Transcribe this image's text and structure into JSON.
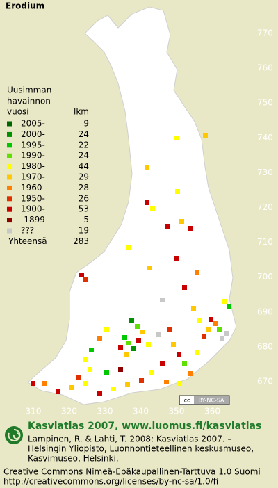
{
  "title": "Erodium",
  "legend": {
    "heading": [
      "Uusimman",
      "havainnon",
      "vuosi"
    ],
    "count_heading": "lkm",
    "entries": [
      {
        "label": "2005-",
        "count": 9,
        "color": "#006400"
      },
      {
        "label": "2000-",
        "count": 24,
        "color": "#009000"
      },
      {
        "label": "1995-",
        "count": 22,
        "color": "#00c800"
      },
      {
        "label": "1990-",
        "count": 24,
        "color": "#60e000"
      },
      {
        "label": "1980-",
        "count": 44,
        "color": "#ffff00"
      },
      {
        "label": "1970-",
        "count": 29,
        "color": "#ffc800"
      },
      {
        "label": "1960-",
        "count": 28,
        "color": "#ff8000"
      },
      {
        "label": "1950-",
        "count": 26,
        "color": "#e03000"
      },
      {
        "label": "1900-",
        "count": 53,
        "color": "#c80000"
      },
      {
        "label": "-1899",
        "count": 5,
        "color": "#8c0000"
      },
      {
        "label": "???",
        "count": 19,
        "color": "#c8c8c8"
      }
    ],
    "total_label": "Yhteensä",
    "total": 283
  },
  "map_grid": {
    "northing": [
      770,
      760,
      750,
      740,
      730,
      720,
      710,
      700,
      690,
      680,
      670
    ],
    "easting": [
      310,
      320,
      330,
      340,
      350,
      360
    ]
  },
  "license_badge": {
    "icon": "cc",
    "text": "BY-NC-SA"
  },
  "footer": {
    "title": "Kasviatlas 2007, www.luomus.fi/kasviatlas",
    "citation": [
      "Lampinen, R. & Lahti, T. 2008: Kasviatlas 2007. –",
      "Helsingin Yliopisto, Luonnontieteellinen keskusmuseo,",
      "Kasvimuseo, Helsinki."
    ],
    "license": [
      "Creative Commons Nimeä-Epäkaupallinen-Tarttuva 1.0 Suomi",
      "http://creativecommons.org/licenses/by-nc-sa/1.0/fi"
    ]
  }
}
